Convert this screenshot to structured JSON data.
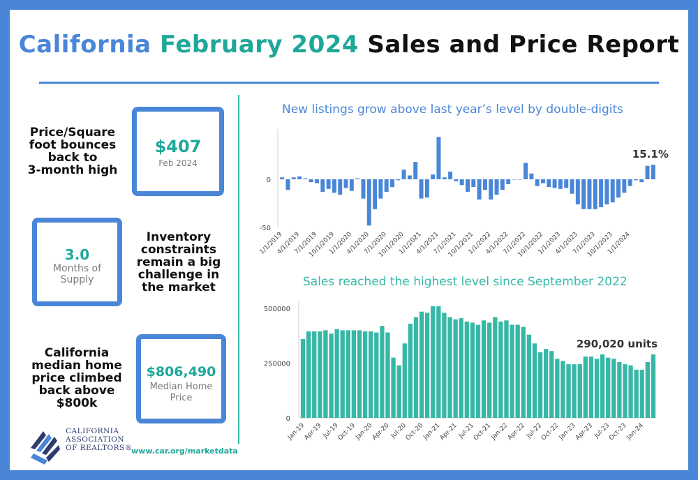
{
  "title": {
    "part1": "California",
    "part2": "February 2024",
    "part3": "Sales and Price Report"
  },
  "stats": {
    "price": {
      "text_lines": [
        "Price/Square",
        "foot bounces",
        "back to",
        "3-month high"
      ],
      "value": "$407",
      "sub": "Feb 2024"
    },
    "supply": {
      "value": "3.0",
      "sub_lines": [
        "Months of",
        "Supply"
      ],
      "text_lines": [
        "Inventory",
        "constraints",
        "remain a big",
        "challenge in",
        "the market"
      ]
    },
    "median": {
      "text_lines": [
        "California",
        "median home",
        "price climbed",
        "back above",
        "$800k"
      ],
      "value": "$806,490",
      "sub_lines": [
        "Median Home",
        "Price"
      ]
    }
  },
  "footer": {
    "org_lines": [
      "CALIFORNIA",
      "ASSOCIATION",
      "OF REALTORS®"
    ],
    "url": "www.car.org/marketdata"
  },
  "colors": {
    "blue": "#4a86d8",
    "teal": "#37b8a7",
    "teal_text": "#1fa89a"
  },
  "chart_data": [
    {
      "type": "bar",
      "title": "New listings grow above last year’s level by double-digits",
      "xlabel": "",
      "ylabel": "",
      "ylim": [
        -50,
        50
      ],
      "yticks": [
        -50,
        0
      ],
      "annotation": "15.1%",
      "x_tick_labels": [
        "1/1/2019",
        "4/1/2019",
        "7/1/2019",
        "10/1/2019",
        "1/1/2020",
        "4/1/2020",
        "7/1/2020",
        "10/1/2020",
        "1/1/2021",
        "4/1/2021",
        "7/1/2021",
        "10/1/2021",
        "1/1/2022",
        "4/1/2022",
        "7/1/2022",
        "10/1/2022",
        "1/1/2023",
        "4/1/2023",
        "7/1/2023",
        "10/1/2023",
        "1/1/2024"
      ],
      "values": [
        2,
        -11,
        2,
        3,
        1,
        -3,
        -4,
        -13,
        -10,
        -14,
        -16,
        -9,
        -12,
        1,
        -20,
        -48,
        -31,
        -20,
        -13,
        -8,
        -1,
        10,
        4,
        18,
        -20,
        -19,
        5,
        44,
        2,
        8,
        -2,
        -6,
        -13,
        -8,
        -21,
        -11,
        -21,
        -16,
        -11,
        -5,
        0,
        0,
        17,
        6,
        -7,
        -4,
        -8,
        -9,
        -10,
        -9,
        -15,
        -26,
        -31,
        -31,
        -31,
        -29,
        -26,
        -24,
        -19,
        -14,
        -7,
        -1,
        -3,
        14,
        15.1
      ]
    },
    {
      "type": "bar",
      "title": "Sales reached the highest level since September 2022",
      "xlabel": "",
      "ylabel": "",
      "ylim": [
        0,
        540000
      ],
      "yticks": [
        0,
        250000,
        500000
      ],
      "annotation": "290,020 units",
      "x_tick_labels": [
        "Jan-19",
        "Apr-19",
        "Jul-19",
        "Oct-19",
        "Jan-20",
        "Apr-20",
        "Jul-20",
        "Oct-20",
        "Jan-21",
        "Apr-21",
        "Jul-21",
        "Oct-21",
        "Jan-22",
        "Apr-22",
        "Jul-22",
        "Oct-22",
        "Jan-23",
        "Apr-23",
        "Jul-23",
        "Oct-23",
        "Jan-24"
      ],
      "values": [
        360000,
        395000,
        395000,
        395000,
        400000,
        385000,
        405000,
        400000,
        400000,
        400000,
        400000,
        395000,
        395000,
        390000,
        420000,
        390000,
        275000,
        240000,
        340000,
        430000,
        460000,
        485000,
        480000,
        510000,
        510000,
        480000,
        460000,
        450000,
        455000,
        440000,
        435000,
        425000,
        445000,
        435000,
        460000,
        440000,
        445000,
        425000,
        425000,
        415000,
        380000,
        340000,
        300000,
        315000,
        305000,
        270000,
        260000,
        245000,
        245000,
        245000,
        280000,
        280000,
        270000,
        290000,
        275000,
        270000,
        255000,
        245000,
        240000,
        220000,
        220000,
        255000,
        290020
      ]
    }
  ]
}
